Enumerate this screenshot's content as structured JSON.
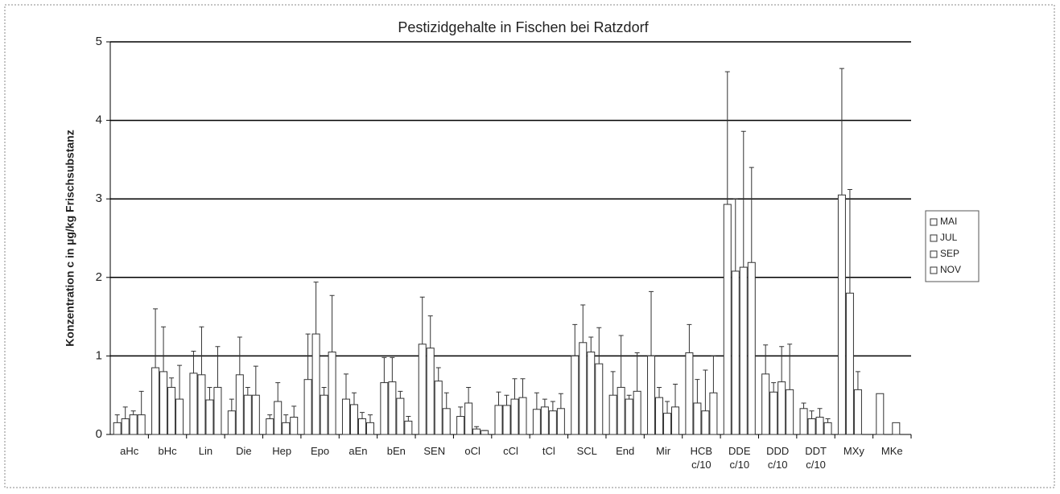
{
  "chart_data": {
    "type": "bar",
    "title": "Pestizidgehalte in Fischen bei Ratzdorf",
    "y_label": "Konzentration c in µg/kg Frischsubstanz",
    "categories": [
      "aHc",
      "bHc",
      "Lin",
      "Die",
      "Hep",
      "Epo",
      "aEn",
      "bEn",
      "SEN",
      "oCl",
      "cCl",
      "tCl",
      "SCL",
      "End",
      "Mir",
      "HCB c/10",
      "DDE c/10",
      "DDD c/10",
      "DDT c/10",
      "MXy",
      "MKe"
    ],
    "series": [
      {
        "name": "MAI",
        "color": "#ffffff",
        "values": [
          0.15,
          0.85,
          0.78,
          0.3,
          0.2,
          0.7,
          0.45,
          0.66,
          1.15,
          0.23,
          0.37,
          0.32,
          1.0,
          0.5,
          1.0,
          1.04,
          2.93,
          0.77,
          0.33,
          3.05,
          0.52
        ],
        "errors": [
          0.1,
          0.75,
          0.28,
          0.15,
          0.05,
          0.58,
          0.32,
          0.32,
          0.6,
          0.12,
          0.17,
          0.21,
          0.4,
          0.3,
          0.82,
          0.36,
          1.69,
          0.37,
          0.07,
          1.61,
          null
        ]
      },
      {
        "name": "JUL",
        "color": "#ffffff",
        "values": [
          0.2,
          0.8,
          0.76,
          0.76,
          0.42,
          1.28,
          0.38,
          0.67,
          1.1,
          0.4,
          0.37,
          0.35,
          1.17,
          0.6,
          0.47,
          0.4,
          2.08,
          0.54,
          0.2,
          1.8,
          null
        ],
        "errors": [
          0.15,
          0.57,
          0.61,
          0.48,
          0.24,
          0.66,
          0.15,
          0.31,
          0.41,
          0.2,
          0.13,
          0.1,
          0.48,
          0.66,
          0.13,
          0.3,
          0.92,
          0.12,
          0.1,
          1.32,
          null
        ]
      },
      {
        "name": "SEP",
        "color": "#ffffff",
        "values": [
          0.25,
          0.6,
          0.44,
          0.5,
          0.15,
          0.5,
          0.2,
          0.46,
          0.68,
          0.07,
          0.45,
          0.3,
          1.05,
          0.45,
          0.27,
          0.3,
          2.13,
          0.67,
          0.22,
          0.57,
          0.15
        ],
        "errors": [
          0.05,
          0.12,
          0.16,
          0.1,
          0.1,
          0.1,
          0.08,
          0.09,
          0.17,
          0.03,
          0.26,
          0.12,
          0.19,
          0.05,
          0.15,
          0.52,
          1.73,
          0.45,
          0.11,
          0.23,
          null
        ]
      },
      {
        "name": "NOV",
        "color": "#ffffff",
        "values": [
          0.25,
          0.45,
          0.6,
          0.5,
          0.22,
          1.05,
          0.15,
          0.17,
          0.33,
          0.05,
          0.47,
          0.33,
          0.9,
          0.55,
          0.35,
          0.53,
          2.19,
          0.57,
          0.15,
          null,
          null
        ],
        "errors": [
          0.3,
          0.43,
          0.52,
          0.37,
          0.14,
          0.72,
          0.1,
          0.06,
          0.2,
          0,
          0.24,
          0.19,
          0.46,
          0.49,
          0.29,
          0.47,
          1.21,
          0.58,
          0.05,
          null,
          null
        ]
      }
    ],
    "ylim": [
      0,
      5
    ],
    "yticks": [
      0,
      1,
      2,
      3,
      4,
      5
    ],
    "grid": true,
    "legend": "right"
  }
}
